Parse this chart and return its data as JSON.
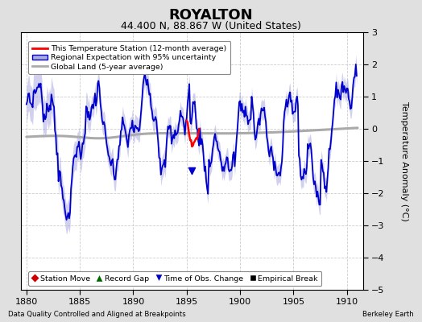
{
  "title": "ROYALTON",
  "subtitle": "44.400 N, 88.867 W (United States)",
  "ylabel": "Temperature Anomaly (°C)",
  "xlabel_left": "Data Quality Controlled and Aligned at Breakpoints",
  "xlabel_right": "Berkeley Earth",
  "xlim": [
    1879.5,
    1911.5
  ],
  "ylim": [
    -5,
    3
  ],
  "yticks": [
    -5,
    -4,
    -3,
    -2,
    -1,
    0,
    1,
    2,
    3
  ],
  "xticks": [
    1880,
    1885,
    1890,
    1895,
    1900,
    1905,
    1910
  ],
  "bg_color": "#e0e0e0",
  "plot_bg_color": "#ffffff",
  "station_line_color": "#ff0000",
  "regional_line_color": "#0000cc",
  "regional_fill_color": "#9999dd",
  "global_line_color": "#aaaaaa",
  "legend_station": "This Temperature Station (12-month average)",
  "legend_regional": "Regional Expectation with 95% uncertainty",
  "legend_global": "Global Land (5-year average)",
  "bottom_legend": [
    {
      "label": "Station Move",
      "color": "#cc0000",
      "marker": "◆"
    },
    {
      "label": "Record Gap",
      "color": "#006600",
      "marker": "▲"
    },
    {
      "label": "Time of Obs. Change",
      "color": "#0000cc",
      "marker": "▼"
    },
    {
      "label": "Empirical Break",
      "color": "#000000",
      "marker": "■"
    }
  ],
  "toc_x": 1895.5,
  "toc_y": -1.3,
  "seed": 7
}
